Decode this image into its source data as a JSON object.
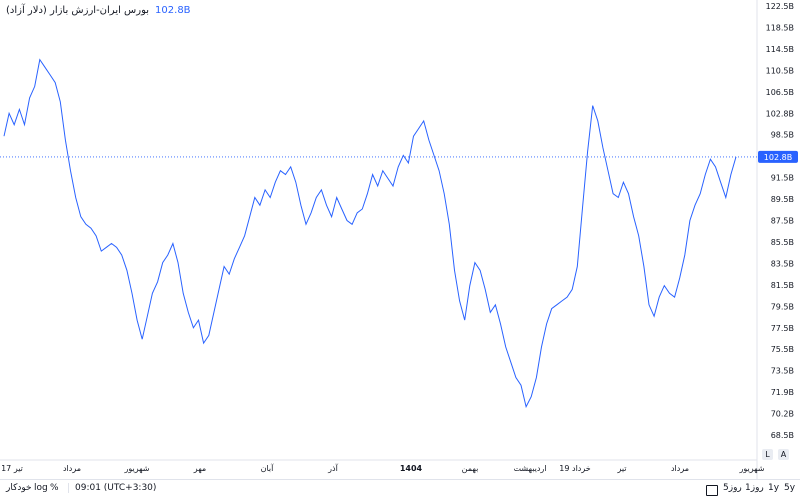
{
  "legend": {
    "title": "بورس ایران-ارزش بازار (دلار آزاد)",
    "last_value": "102.8B"
  },
  "chart_data": {
    "type": "line",
    "title": "بورس ایران-ارزش بازار (دلار آزاد)",
    "ylabel": "",
    "xlabel": "",
    "y_unit": "B",
    "ylim": [
      66.5,
      122.5
    ],
    "y_ticks": [
      "122.5B",
      "118.5B",
      "114.5B",
      "110.5B",
      "106.5B",
      "102.8B",
      "98.5B",
      "94.5B",
      "91.5B",
      "89.5B",
      "87.5B",
      "85.5B",
      "83.5B",
      "81.5B",
      "79.5B",
      "77.5B",
      "75.5B",
      "73.5B",
      "71.9B",
      "70.2B",
      "68.5B"
    ],
    "x_ticks": [
      "17 تیر",
      "مرداد",
      "شهریور",
      "مهر",
      "آبان",
      "آذر",
      "1404",
      "بهمن",
      "اردیبهشت",
      "19 خرداد",
      "تیر",
      "مرداد",
      "شهریور"
    ],
    "last_value": 102.8,
    "series": [
      {
        "values": [
          105.5,
          108.5,
          107.0,
          109.0,
          107.0,
          110.5,
          112.0,
          115.5,
          114.5,
          113.5,
          112.5,
          110.0,
          105.0,
          101.0,
          97.5,
          95.0,
          94.0,
          93.5,
          92.5,
          90.5,
          91.0,
          91.5,
          91.0,
          90.0,
          88.0,
          85.0,
          81.5,
          79.0,
          82.0,
          85.0,
          86.5,
          89.0,
          90.0,
          91.5,
          89.0,
          85.0,
          82.5,
          80.5,
          81.5,
          78.5,
          79.5,
          82.5,
          85.5,
          88.5,
          87.5,
          89.5,
          91.0,
          92.5,
          95.0,
          97.5,
          96.5,
          98.5,
          97.5,
          99.5,
          101.0,
          100.5,
          101.5,
          99.5,
          96.5,
          94.0,
          95.5,
          97.5,
          98.5,
          96.5,
          95.0,
          97.5,
          96.0,
          94.5,
          94.0,
          95.5,
          96.0,
          98.0,
          100.5,
          99.0,
          101.0,
          100.0,
          99.0,
          101.5,
          103.0,
          102.0,
          105.5,
          106.5,
          107.5,
          105.0,
          103.0,
          101.0,
          98.0,
          94.0,
          88.0,
          84.0,
          81.5,
          86.0,
          89.0,
          88.0,
          85.5,
          82.5,
          83.5,
          81.0,
          78.0,
          76.0,
          74.0,
          73.0,
          70.2,
          71.5,
          74.0,
          78.0,
          81.0,
          83.0,
          83.5,
          84.0,
          84.5,
          85.5,
          88.5,
          96.0,
          103.5,
          109.5,
          107.5,
          104.0,
          101.0,
          98.0,
          97.5,
          99.5,
          98.0,
          95.0,
          92.5,
          88.5,
          83.5,
          82.0,
          84.5,
          86.0,
          85.0,
          84.5,
          87.0,
          90.0,
          94.5,
          96.5,
          98.0,
          100.5,
          102.5,
          101.5,
          99.5,
          97.5,
          100.5,
          102.8
        ]
      }
    ]
  },
  "toolbar": {
    "autoscale": "خودکار",
    "log": "log",
    "percent": "%",
    "time": "09:01 (UTC+3:30)",
    "ranges": [
      "5y",
      "1y",
      "1روز",
      "5روز"
    ]
  },
  "corner": {
    "l": "L",
    "a": "A"
  }
}
